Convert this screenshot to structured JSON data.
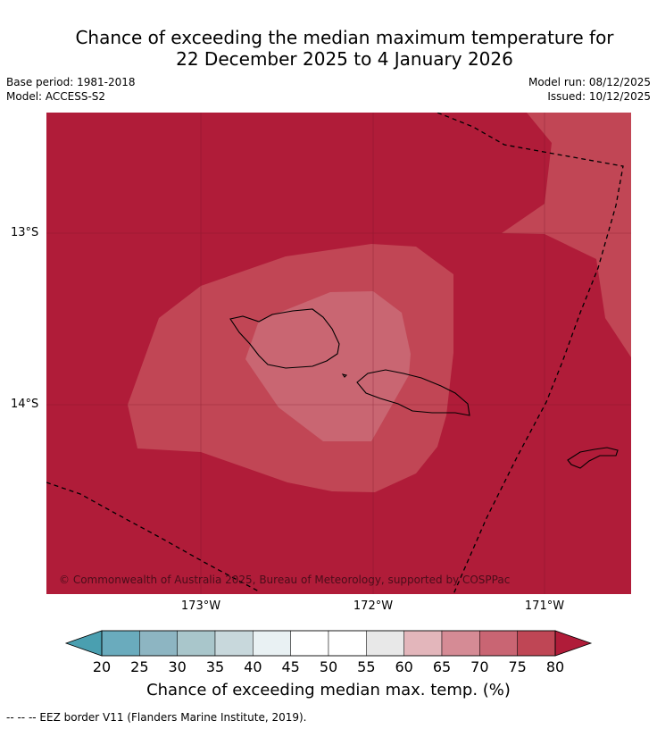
{
  "title_line1": "Chance of exceeding the median maximum temperature for",
  "title_line2": "22 December 2025 to 4 January 2026",
  "base_period": "Base period: 1981-2018",
  "model": "Model: ACCESS-S2",
  "model_run": "Model run: 08/12/2025",
  "issued": "Issued: 10/12/2025",
  "copyright": "© Commonwealth of Australia 2025, Bureau of Meteorology, supported by COSPPac",
  "lat_labels": [
    "13°S",
    "14°S"
  ],
  "lon_labels": [
    "173°W",
    "172°W",
    "171°W"
  ],
  "colorbar": {
    "ticks": [
      "20",
      "25",
      "30",
      "35",
      "40",
      "45",
      "50",
      "55",
      "60",
      "65",
      "70",
      "75",
      "80"
    ],
    "colors": [
      "#6aabbd",
      "#8db5c2",
      "#a9c6cb",
      "#c8d8dc",
      "#e9f1f3",
      "#ffffff",
      "#ffffff",
      "#e8e8e8",
      "#e3b6bb",
      "#d58b95",
      "#c96573",
      "#bf4655"
    ],
    "low_color": "#4a9fb0",
    "high_color": "#b01c39",
    "label": "Chance of exceeding median max. temp. (%)"
  },
  "footnote": "--  --  -- EEZ border V11 (Flanders Marine Institute, 2019).",
  "map_colors": {
    "above_80": "#b01c39",
    "75_80": "#c14655",
    "70_75": "#c96672"
  }
}
